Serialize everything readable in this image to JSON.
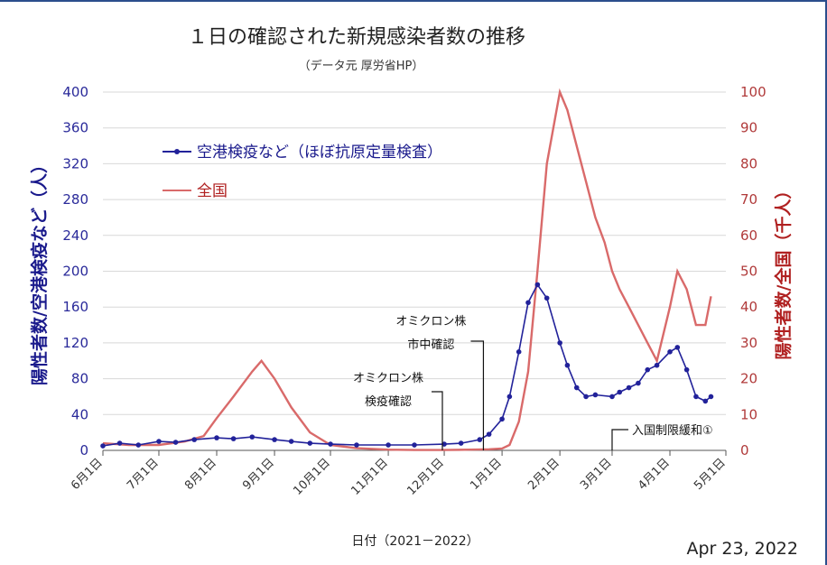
{
  "chart_data": {
    "type": "line",
    "title": "１日の確認された新規感染者数の推移",
    "subtitle": "（データ元 厚労省HP）",
    "xlabel": "日付（2021－2022）",
    "ylabel_left": "陽性者数/空港検疫など（人）",
    "ylabel_right": "陽性者数/全国（千人）",
    "date_stamp": "Apr 23, 2022",
    "x_range": [
      "2021-06-01",
      "2022-05-01"
    ],
    "x_ticks": [
      "6月1日",
      "7月1日",
      "8月1日",
      "9月1日",
      "10月1日",
      "11月1日",
      "12月1日",
      "1月1日",
      "2月1日",
      "3月1日",
      "4月1日",
      "5月1日"
    ],
    "ylim_left": [
      0,
      400
    ],
    "ylim_right": [
      0,
      100
    ],
    "yticks_left": [
      "0",
      "40",
      "80",
      "120",
      "160",
      "200",
      "240",
      "280",
      "320",
      "360",
      "400"
    ],
    "yticks_right": [
      "0",
      "10",
      "20",
      "30",
      "40",
      "50",
      "60",
      "70",
      "80",
      "90",
      "100"
    ],
    "legend_position": "top-left",
    "series": [
      {
        "name": "空港検疫など（ほぼ抗原定量検査）",
        "axis": "left",
        "color": "#22229a",
        "marker": "circle",
        "x": [
          "2021-06-01",
          "2021-06-10",
          "2021-06-20",
          "2021-07-01",
          "2021-07-10",
          "2021-07-20",
          "2021-08-01",
          "2021-08-10",
          "2021-08-20",
          "2021-09-01",
          "2021-09-10",
          "2021-09-20",
          "2021-10-01",
          "2021-10-15",
          "2021-11-01",
          "2021-11-15",
          "2021-12-01",
          "2021-12-10",
          "2021-12-20",
          "2021-12-25",
          "2022-01-01",
          "2022-01-05",
          "2022-01-10",
          "2022-01-15",
          "2022-01-20",
          "2022-01-25",
          "2022-02-01",
          "2022-02-05",
          "2022-02-10",
          "2022-02-15",
          "2022-02-20",
          "2022-03-01",
          "2022-03-05",
          "2022-03-10",
          "2022-03-15",
          "2022-03-20",
          "2022-03-25",
          "2022-04-01",
          "2022-04-05",
          "2022-04-10",
          "2022-04-15",
          "2022-04-20",
          "2022-04-23"
        ],
        "y": [
          5,
          8,
          6,
          10,
          9,
          12,
          14,
          13,
          15,
          12,
          10,
          8,
          7,
          6,
          6,
          6,
          7,
          8,
          12,
          18,
          35,
          60,
          110,
          165,
          185,
          170,
          120,
          95,
          70,
          60,
          62,
          60,
          65,
          70,
          75,
          90,
          95,
          110,
          115,
          90,
          60,
          55,
          60
        ]
      },
      {
        "name": "全国",
        "axis": "right",
        "color": "#d96a6a",
        "x": [
          "2021-06-01",
          "2021-06-15",
          "2021-07-01",
          "2021-07-15",
          "2021-07-25",
          "2021-08-01",
          "2021-08-10",
          "2021-08-20",
          "2021-08-25",
          "2021-09-01",
          "2021-09-10",
          "2021-09-20",
          "2021-10-01",
          "2021-10-15",
          "2021-11-01",
          "2021-11-15",
          "2021-12-01",
          "2021-12-15",
          "2021-12-25",
          "2022-01-01",
          "2022-01-05",
          "2022-01-10",
          "2022-01-15",
          "2022-01-20",
          "2022-01-25",
          "2022-02-01",
          "2022-02-05",
          "2022-02-10",
          "2022-02-15",
          "2022-02-20",
          "2022-02-25",
          "2022-03-01",
          "2022-03-05",
          "2022-03-10",
          "2022-03-15",
          "2022-03-20",
          "2022-03-25",
          "2022-04-01",
          "2022-04-05",
          "2022-04-10",
          "2022-04-15",
          "2022-04-20",
          "2022-04-23"
        ],
        "y": [
          2,
          1.5,
          1.5,
          2.5,
          4,
          9,
          15,
          22,
          25,
          20,
          12,
          5,
          1.5,
          0.6,
          0.2,
          0.1,
          0.1,
          0.2,
          0.3,
          0.5,
          1.5,
          8,
          22,
          50,
          80,
          100,
          95,
          85,
          75,
          65,
          58,
          50,
          45,
          40,
          35,
          30,
          25,
          40,
          50,
          45,
          35,
          35,
          43
        ]
      }
    ],
    "annotations": [
      {
        "text_lines": [
          "オミクロン株",
          "検疫確認"
        ],
        "date": "2021-11-30"
      },
      {
        "text_lines": [
          "オミクロン株",
          "市中確認"
        ],
        "date": "2021-12-22"
      },
      {
        "text_lines": [
          "入国制限緩和①"
        ],
        "date": "2022-03-01"
      }
    ]
  }
}
